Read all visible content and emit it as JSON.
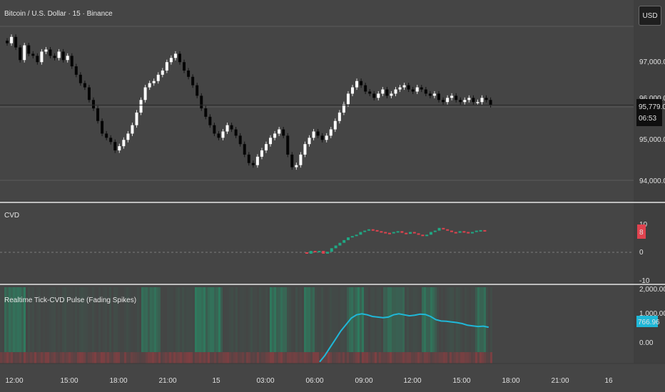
{
  "header": {
    "title": "Bitcoin / U.S. Dollar · 15 · Binance",
    "currency_button": "USD"
  },
  "price_panel": {
    "axis_ticks": [
      "97,000.00",
      "96,000.00",
      "95,000.00",
      "94,000.00"
    ],
    "last_price": "95,779.01",
    "countdown": "06:53"
  },
  "cvd_panel": {
    "title": "CVD",
    "axis_ticks": [
      "10",
      "0",
      "-10"
    ],
    "current_value": "8",
    "value_color": "#e0434f"
  },
  "pulse_panel": {
    "title": "Realtime Tick-CVD Pulse (Fading Spikes)",
    "axis_ticks": [
      "2,000.00",
      "1,000.00",
      "0.00"
    ],
    "current_value": "766.96",
    "line_color": "#1fb8d8"
  },
  "time_axis": {
    "labels": [
      "12:00",
      "15:00",
      "18:00",
      "21:00",
      "15",
      "03:00",
      "06:00",
      "09:00",
      "12:00",
      "15:00",
      "18:00",
      "21:00",
      "16"
    ]
  },
  "chart_data": [
    {
      "type": "candlestick",
      "title": "Bitcoin / U.S. Dollar · 15 · Binance",
      "ylim": [
        93700,
        97600
      ],
      "y_ticks": [
        97000,
        96000,
        95000,
        94000
      ],
      "close": [
        97250,
        97400,
        97150,
        96850,
        97200,
        97000,
        96950,
        96800,
        97050,
        97100,
        96950,
        96900,
        97050,
        96850,
        96950,
        96700,
        96500,
        96300,
        96200,
        95900,
        95700,
        95400,
        95100,
        95000,
        94900,
        94700,
        94800,
        94950,
        95100,
        95300,
        95600,
        95900,
        96200,
        96300,
        96350,
        96500,
        96600,
        96800,
        96900,
        97000,
        96800,
        96600,
        96450,
        96250,
        96000,
        95700,
        95500,
        95300,
        95100,
        95000,
        95150,
        95300,
        95200,
        95050,
        94850,
        94600,
        94400,
        94350,
        94550,
        94700,
        94850,
        95000,
        95100,
        95200,
        95050,
        94600,
        94300,
        94350,
        94600,
        94850,
        95000,
        95150,
        95050,
        94950,
        95050,
        95200,
        95400,
        95600,
        95800,
        96050,
        96200,
        96350,
        96250,
        96100,
        96050,
        95950,
        96050,
        96150,
        96000,
        96050,
        96150,
        96200,
        96250,
        96150,
        96100,
        96200,
        96150,
        96050,
        96000,
        96050,
        95900,
        95850,
        95950,
        96000,
        95900,
        95850,
        95900,
        95950,
        95850,
        95850,
        95950,
        95900,
        95780
      ]
    },
    {
      "type": "bar",
      "title": "CVD",
      "ylim": [
        -10,
        10
      ],
      "y_ticks": [
        10,
        0,
        -10
      ],
      "values": [
        -0.5,
        0.5,
        0,
        0.5,
        -0.5,
        0.2,
        1.5,
        2.5,
        3.5,
        4.5,
        5.5,
        6.0,
        6.5,
        7.5,
        8,
        8.5,
        8.2,
        7.8,
        7.5,
        7.2,
        7.0,
        7.5,
        7.8,
        7.2,
        6.8,
        7.5,
        7.0,
        6.5,
        6.0,
        6.5,
        7.5,
        8,
        9,
        8.5,
        8,
        7.5,
        7.2,
        7.8,
        7.5,
        7.0,
        7.5,
        8,
        8.2,
        8
      ]
    },
    {
      "type": "line",
      "title": "Realtime Tick-CVD Pulse (Fading Spikes)",
      "ylim": [
        -350,
        2000
      ],
      "y_ticks": [
        2000,
        1000,
        0
      ],
      "values": [
        -300,
        -100,
        150,
        400,
        650,
        850,
        1050,
        1150,
        1180,
        1150,
        1100,
        1080,
        1060,
        1080,
        1150,
        1180,
        1150,
        1120,
        1140,
        1170,
        1160,
        1100,
        1000,
        960,
        950,
        930,
        910,
        880,
        830,
        810,
        790,
        800,
        767
      ]
    }
  ]
}
